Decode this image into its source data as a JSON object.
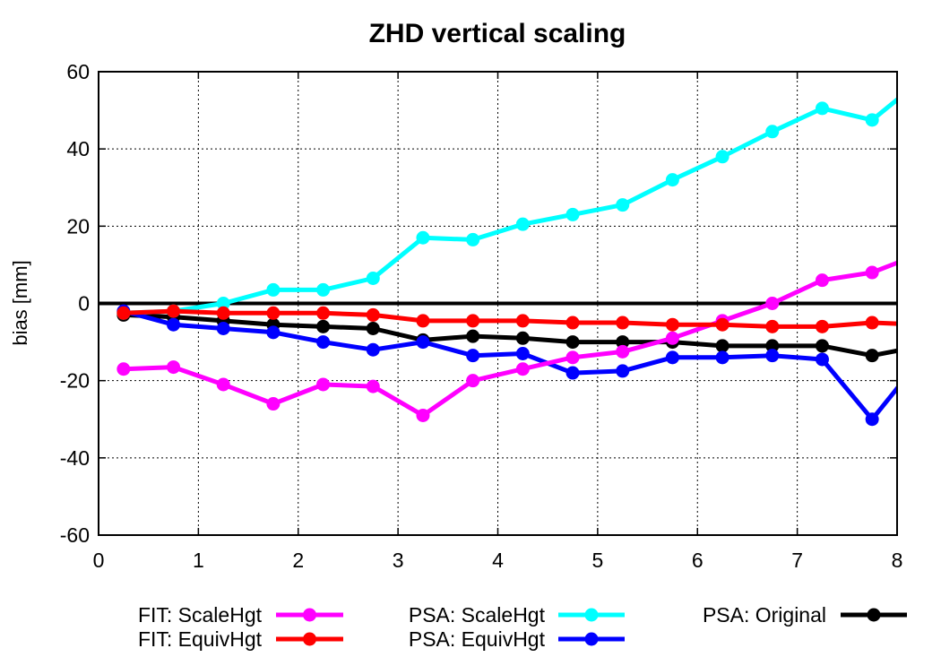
{
  "chart_data": {
    "type": "line",
    "title": "ZHD vertical scaling",
    "xlabel": "",
    "ylabel": "bias [mm]",
    "xlim": [
      0,
      8
    ],
    "ylim": [
      -60,
      60
    ],
    "xticks": [
      "0",
      "1",
      "2",
      "3",
      "4",
      "5",
      "6",
      "7",
      "8"
    ],
    "yticks": [
      "-60",
      "-40",
      "-20",
      "0",
      "20",
      "40",
      "60"
    ],
    "grid": true,
    "legend_position": "bottom",
    "x": [
      0.25,
      0.75,
      1.25,
      1.75,
      2.25,
      2.75,
      3.25,
      3.75,
      4.25,
      4.75,
      5.25,
      5.75,
      6.25,
      6.75,
      7.25,
      7.75,
      8.25
    ],
    "series": [
      {
        "name": "PSA: Original",
        "color": "#000000",
        "values": [
          -3,
          -3.5,
          -4.5,
          -5.5,
          -6,
          -6.5,
          -9.5,
          -8.5,
          -9,
          -10,
          -10,
          -10,
          -11,
          -11,
          -11,
          -13.5,
          -11
        ]
      },
      {
        "name": "PSA: ScaleHgt",
        "color": "#00ffff",
        "values": [
          -2.5,
          -2,
          0,
          3.5,
          3.5,
          6.5,
          17,
          16.5,
          20.5,
          23,
          25.5,
          32,
          38,
          44.5,
          50.5,
          47.5,
          58
        ]
      },
      {
        "name": "PSA: EquivHgt",
        "color": "#0000ff",
        "values": [
          -2,
          -5.5,
          -6.5,
          -7.5,
          -10,
          -12,
          -10,
          -13.5,
          -13,
          -18,
          -17.5,
          -14,
          -14,
          -13.5,
          -14.5,
          -30,
          -14
        ]
      },
      {
        "name": "FIT: ScaleHgt",
        "color": "#ff00ff",
        "values": [
          -17,
          -16.5,
          -21,
          -26,
          -21,
          -21.5,
          -29,
          -20,
          -17,
          -14,
          -12.5,
          -9,
          -4.5,
          0,
          6,
          8,
          13
        ]
      },
      {
        "name": "FIT: EquivHgt",
        "color": "#ff0000",
        "values": [
          -2.5,
          -2,
          -2.5,
          -2.5,
          -2.5,
          -3,
          -4.5,
          -4.5,
          -4.5,
          -5,
          -5,
          -5.5,
          -5.5,
          -6,
          -6,
          -5,
          -5.5
        ]
      }
    ],
    "legend_order": [
      "FIT: ScaleHgt",
      "FIT: EquivHgt",
      "PSA: ScaleHgt",
      "PSA: EquivHgt",
      "PSA: Original"
    ]
  }
}
